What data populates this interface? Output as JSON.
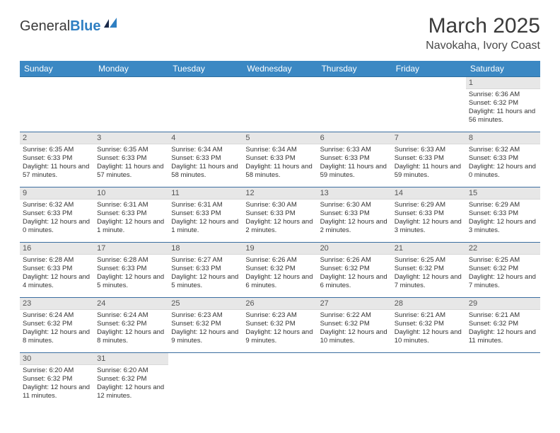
{
  "logo": {
    "text1": "General",
    "text2": "Blue"
  },
  "title": "March 2025",
  "location": "Navokaha, Ivory Coast",
  "colors": {
    "header_bg": "#3b88c3",
    "header_text": "#ffffff",
    "row_divider": "#3b6ea0",
    "daynum_bg": "#e7e7e7",
    "body_text": "#333333",
    "logo_gray": "#3a3a3a",
    "logo_blue": "#2f7fc2"
  },
  "day_headers": [
    "Sunday",
    "Monday",
    "Tuesday",
    "Wednesday",
    "Thursday",
    "Friday",
    "Saturday"
  ],
  "weeks": [
    [
      null,
      null,
      null,
      null,
      null,
      null,
      {
        "n": "1",
        "sr": "Sunrise: 6:36 AM",
        "ss": "Sunset: 6:32 PM",
        "dl": "Daylight: 11 hours and 56 minutes."
      }
    ],
    [
      {
        "n": "2",
        "sr": "Sunrise: 6:35 AM",
        "ss": "Sunset: 6:33 PM",
        "dl": "Daylight: 11 hours and 57 minutes."
      },
      {
        "n": "3",
        "sr": "Sunrise: 6:35 AM",
        "ss": "Sunset: 6:33 PM",
        "dl": "Daylight: 11 hours and 57 minutes."
      },
      {
        "n": "4",
        "sr": "Sunrise: 6:34 AM",
        "ss": "Sunset: 6:33 PM",
        "dl": "Daylight: 11 hours and 58 minutes."
      },
      {
        "n": "5",
        "sr": "Sunrise: 6:34 AM",
        "ss": "Sunset: 6:33 PM",
        "dl": "Daylight: 11 hours and 58 minutes."
      },
      {
        "n": "6",
        "sr": "Sunrise: 6:33 AM",
        "ss": "Sunset: 6:33 PM",
        "dl": "Daylight: 11 hours and 59 minutes."
      },
      {
        "n": "7",
        "sr": "Sunrise: 6:33 AM",
        "ss": "Sunset: 6:33 PM",
        "dl": "Daylight: 11 hours and 59 minutes."
      },
      {
        "n": "8",
        "sr": "Sunrise: 6:32 AM",
        "ss": "Sunset: 6:33 PM",
        "dl": "Daylight: 12 hours and 0 minutes."
      }
    ],
    [
      {
        "n": "9",
        "sr": "Sunrise: 6:32 AM",
        "ss": "Sunset: 6:33 PM",
        "dl": "Daylight: 12 hours and 0 minutes."
      },
      {
        "n": "10",
        "sr": "Sunrise: 6:31 AM",
        "ss": "Sunset: 6:33 PM",
        "dl": "Daylight: 12 hours and 1 minute."
      },
      {
        "n": "11",
        "sr": "Sunrise: 6:31 AM",
        "ss": "Sunset: 6:33 PM",
        "dl": "Daylight: 12 hours and 1 minute."
      },
      {
        "n": "12",
        "sr": "Sunrise: 6:30 AM",
        "ss": "Sunset: 6:33 PM",
        "dl": "Daylight: 12 hours and 2 minutes."
      },
      {
        "n": "13",
        "sr": "Sunrise: 6:30 AM",
        "ss": "Sunset: 6:33 PM",
        "dl": "Daylight: 12 hours and 2 minutes."
      },
      {
        "n": "14",
        "sr": "Sunrise: 6:29 AM",
        "ss": "Sunset: 6:33 PM",
        "dl": "Daylight: 12 hours and 3 minutes."
      },
      {
        "n": "15",
        "sr": "Sunrise: 6:29 AM",
        "ss": "Sunset: 6:33 PM",
        "dl": "Daylight: 12 hours and 3 minutes."
      }
    ],
    [
      {
        "n": "16",
        "sr": "Sunrise: 6:28 AM",
        "ss": "Sunset: 6:33 PM",
        "dl": "Daylight: 12 hours and 4 minutes."
      },
      {
        "n": "17",
        "sr": "Sunrise: 6:28 AM",
        "ss": "Sunset: 6:33 PM",
        "dl": "Daylight: 12 hours and 5 minutes."
      },
      {
        "n": "18",
        "sr": "Sunrise: 6:27 AM",
        "ss": "Sunset: 6:33 PM",
        "dl": "Daylight: 12 hours and 5 minutes."
      },
      {
        "n": "19",
        "sr": "Sunrise: 6:26 AM",
        "ss": "Sunset: 6:32 PM",
        "dl": "Daylight: 12 hours and 6 minutes."
      },
      {
        "n": "20",
        "sr": "Sunrise: 6:26 AM",
        "ss": "Sunset: 6:32 PM",
        "dl": "Daylight: 12 hours and 6 minutes."
      },
      {
        "n": "21",
        "sr": "Sunrise: 6:25 AM",
        "ss": "Sunset: 6:32 PM",
        "dl": "Daylight: 12 hours and 7 minutes."
      },
      {
        "n": "22",
        "sr": "Sunrise: 6:25 AM",
        "ss": "Sunset: 6:32 PM",
        "dl": "Daylight: 12 hours and 7 minutes."
      }
    ],
    [
      {
        "n": "23",
        "sr": "Sunrise: 6:24 AM",
        "ss": "Sunset: 6:32 PM",
        "dl": "Daylight: 12 hours and 8 minutes."
      },
      {
        "n": "24",
        "sr": "Sunrise: 6:24 AM",
        "ss": "Sunset: 6:32 PM",
        "dl": "Daylight: 12 hours and 8 minutes."
      },
      {
        "n": "25",
        "sr": "Sunrise: 6:23 AM",
        "ss": "Sunset: 6:32 PM",
        "dl": "Daylight: 12 hours and 9 minutes."
      },
      {
        "n": "26",
        "sr": "Sunrise: 6:23 AM",
        "ss": "Sunset: 6:32 PM",
        "dl": "Daylight: 12 hours and 9 minutes."
      },
      {
        "n": "27",
        "sr": "Sunrise: 6:22 AM",
        "ss": "Sunset: 6:32 PM",
        "dl": "Daylight: 12 hours and 10 minutes."
      },
      {
        "n": "28",
        "sr": "Sunrise: 6:21 AM",
        "ss": "Sunset: 6:32 PM",
        "dl": "Daylight: 12 hours and 10 minutes."
      },
      {
        "n": "29",
        "sr": "Sunrise: 6:21 AM",
        "ss": "Sunset: 6:32 PM",
        "dl": "Daylight: 12 hours and 11 minutes."
      }
    ],
    [
      {
        "n": "30",
        "sr": "Sunrise: 6:20 AM",
        "ss": "Sunset: 6:32 PM",
        "dl": "Daylight: 12 hours and 11 minutes."
      },
      {
        "n": "31",
        "sr": "Sunrise: 6:20 AM",
        "ss": "Sunset: 6:32 PM",
        "dl": "Daylight: 12 hours and 12 minutes."
      },
      null,
      null,
      null,
      null,
      null
    ]
  ]
}
